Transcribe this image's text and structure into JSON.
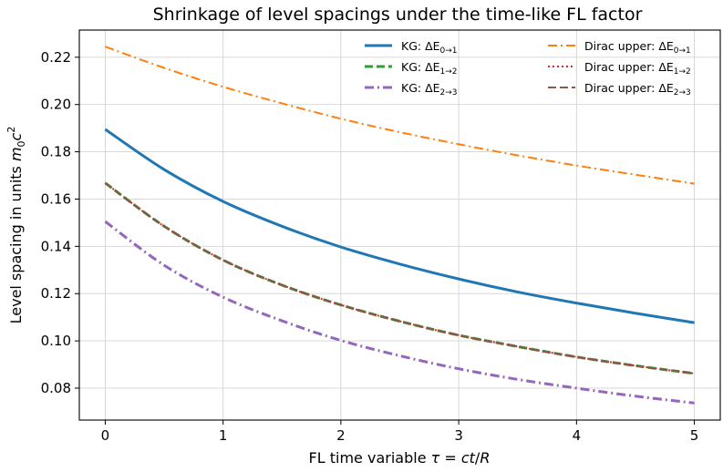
{
  "chart_data": {
    "type": "line",
    "title": "Shrinkage of level spacings under the time-like FL factor",
    "xlabel": "FL time variable τ = ct/R",
    "ylabel": "Level spacing in units m₀c²",
    "xlim": [
      -0.22,
      5.22
    ],
    "ylim": [
      0.0665,
      0.2315
    ],
    "xticks": [
      0,
      1,
      2,
      3,
      4,
      5
    ],
    "xtick_labels": [
      "0",
      "1",
      "2",
      "3",
      "4",
      "5"
    ],
    "yticks": [
      0.08,
      0.1,
      0.12,
      0.14,
      0.16,
      0.18,
      0.2,
      0.22
    ],
    "ytick_labels": [
      "0.08",
      "0.10",
      "0.12",
      "0.14",
      "0.16",
      "0.18",
      "0.20",
      "0.22"
    ],
    "grid": true,
    "legend_position": "top-right",
    "x": [
      0,
      0.5,
      1,
      1.5,
      2,
      2.5,
      3,
      3.5,
      4,
      4.5,
      5
    ],
    "series": [
      {
        "name": "KG: ΔE0→1",
        "legend_main": "KG: ΔE",
        "legend_sub": "0→1",
        "color": "#1f77b4",
        "dash": "solid",
        "width": 3,
        "values": [
          0.1895,
          0.1725,
          0.159,
          0.1485,
          0.1397,
          0.1325,
          0.1262,
          0.1207,
          0.116,
          0.1117,
          0.1077
        ]
      },
      {
        "name": "Dirac upper: ΔE0→1",
        "legend_main": "Dirac upper: ΔE",
        "legend_sub": "0→1",
        "color": "#ff7f0e",
        "dash": "dashdot",
        "width": 2,
        "values": [
          0.2245,
          0.2155,
          0.2075,
          0.2005,
          0.194,
          0.1883,
          0.1832,
          0.1785,
          0.1742,
          0.1703,
          0.1665
        ]
      },
      {
        "name": "KG: ΔE1→2",
        "legend_main": "KG: ΔE",
        "legend_sub": "1→2",
        "color": "#2ca02c",
        "dash": "dashed",
        "width": 3,
        "values": [
          0.1668,
          0.1485,
          0.1342,
          0.1236,
          0.1152,
          0.1083,
          0.1024,
          0.0976,
          0.0932,
          0.0895,
          0.0862
        ]
      },
      {
        "name": "Dirac upper: ΔE1→2",
        "legend_main": "Dirac upper: ΔE",
        "legend_sub": "1→2",
        "color": "#d62728",
        "dash": "dotted",
        "width": 2,
        "values": [
          0.1668,
          0.1485,
          0.1342,
          0.1236,
          0.1152,
          0.1083,
          0.1024,
          0.0976,
          0.0932,
          0.0895,
          0.0862
        ]
      },
      {
        "name": "KG: ΔE2→3",
        "legend_main": "KG: ΔE",
        "legend_sub": "2→3",
        "color": "#9467bd",
        "dash": "dashdot",
        "width": 3,
        "values": [
          0.1505,
          0.132,
          0.1185,
          0.1085,
          0.1002,
          0.0937,
          0.0882,
          0.0837,
          0.08,
          0.0766,
          0.0737
        ]
      },
      {
        "name": "Dirac upper: ΔE2→3",
        "legend_main": "Dirac upper: ΔE",
        "legend_sub": "2→3",
        "color": "#8c564b",
        "dash": "dashed",
        "width": 2,
        "values": [
          0.1668,
          0.1485,
          0.1342,
          0.1236,
          0.1152,
          0.1083,
          0.1024,
          0.0976,
          0.0932,
          0.0895,
          0.0862
        ]
      }
    ]
  }
}
